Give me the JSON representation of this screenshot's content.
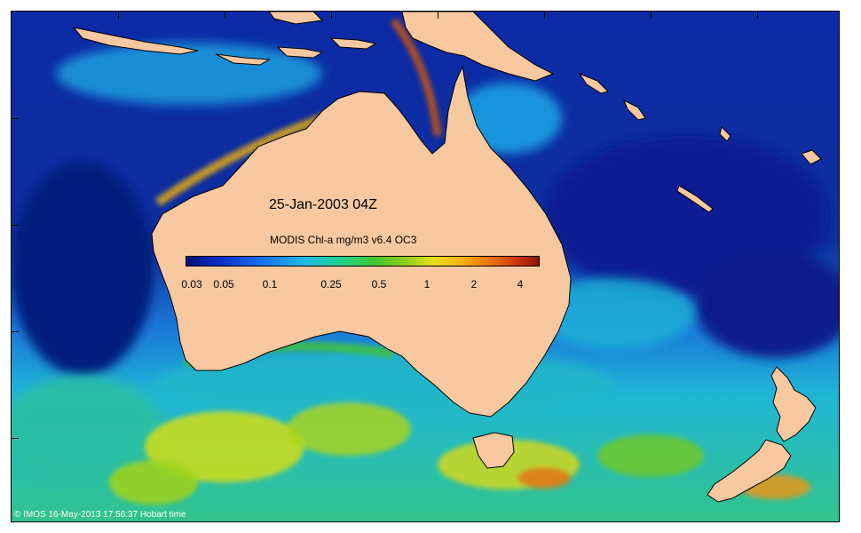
{
  "map": {
    "title": "25-Jan-2003 04Z",
    "legend_title": "MODIS Chl-a mg/m3 v6.4 OC3",
    "colorbar_labels": [
      "0.03",
      "0.05",
      "0.1",
      "0.25",
      "0.5",
      "1",
      "2",
      "4"
    ],
    "credit": "© IMOS 16-May-2013 17:56:37 Hobart time",
    "colors": {
      "land": "#f8c8a0",
      "ocean_low": "#0a1e8c",
      "ocean_mid": "#1f9be6",
      "ocean_high": "#44c62a",
      "bloom": "#e6e01a",
      "very_high": "#c8350c"
    }
  }
}
